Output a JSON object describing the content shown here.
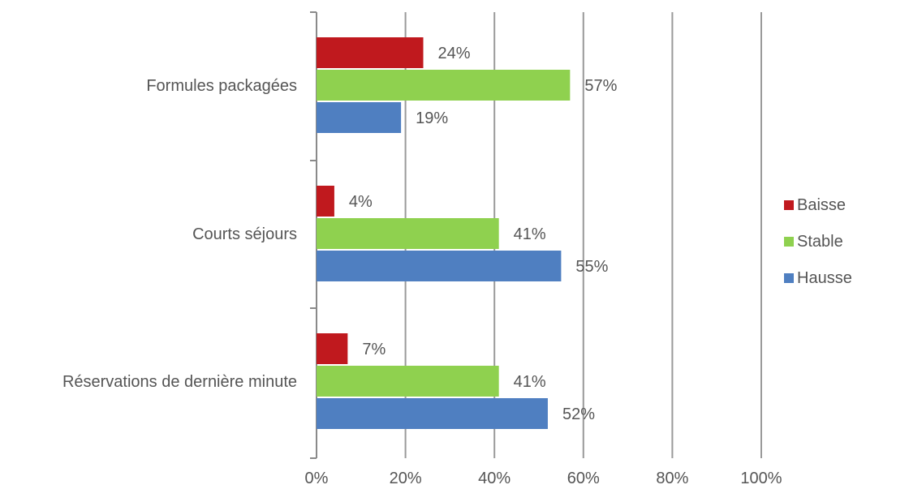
{
  "chart_data": {
    "type": "bar",
    "orientation": "horizontal",
    "categories": [
      "Formules packagées",
      "Courts séjours",
      "Réservations de dernière minute"
    ],
    "series": [
      {
        "name": "Baisse",
        "color": "#c0191e",
        "values": [
          24,
          4,
          7
        ],
        "labels": [
          "24%",
          "4%",
          "7%"
        ]
      },
      {
        "name": "Stable",
        "color": "#8fd14f",
        "values": [
          57,
          41,
          41
        ],
        "labels": [
          "57%",
          "41%",
          "41%"
        ]
      },
      {
        "name": "Hausse",
        "color": "#4f7fc1",
        "values": [
          19,
          55,
          52
        ],
        "labels": [
          "19%",
          "55%",
          "52%"
        ]
      }
    ],
    "xlim": [
      0,
      100
    ],
    "xticks": [
      0,
      20,
      40,
      60,
      80,
      100
    ],
    "xtick_labels": [
      "0%",
      "20%",
      "40%",
      "60%",
      "80%",
      "100%"
    ],
    "grid": true,
    "legend_position": "right",
    "title": "",
    "xlabel": "",
    "ylabel": ""
  }
}
